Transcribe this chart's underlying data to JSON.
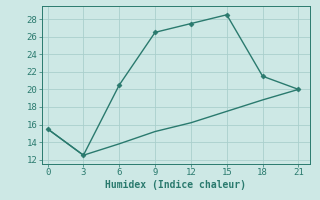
{
  "xlabel": "Humidex (Indice chaleur)",
  "ylabel": "",
  "x_line1": [
    0,
    3,
    6,
    9,
    12,
    15,
    18,
    21
  ],
  "y_line1": [
    15.5,
    12.5,
    20.5,
    26.5,
    27.5,
    28.5,
    21.5,
    20
  ],
  "x_line2": [
    0,
    3,
    6,
    9,
    12,
    15,
    18,
    21
  ],
  "y_line2": [
    15.5,
    12.5,
    13.8,
    15.2,
    16.2,
    17.5,
    18.8,
    20
  ],
  "line_color": "#2a7a6e",
  "bg_color": "#cde8e5",
  "grid_color": "#aacfcc",
  "ylim": [
    11.5,
    29.5
  ],
  "xlim": [
    -0.5,
    22
  ],
  "yticks": [
    12,
    14,
    16,
    18,
    20,
    22,
    24,
    26,
    28
  ],
  "xticks": [
    0,
    3,
    6,
    9,
    12,
    15,
    18,
    21
  ],
  "marker": "D",
  "markersize": 2.5,
  "linewidth": 1.0,
  "xlabel_fontsize": 7,
  "tick_fontsize": 6.5
}
